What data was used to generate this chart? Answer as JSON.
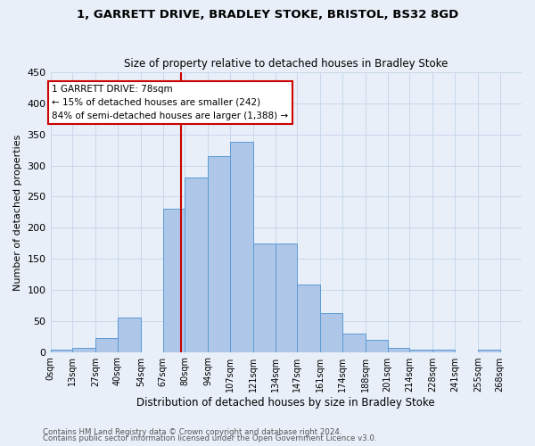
{
  "title_line1": "1, GARRETT DRIVE, BRADLEY STOKE, BRISTOL, BS32 8GD",
  "title_line2": "Size of property relative to detached houses in Bradley Stoke",
  "xlabel": "Distribution of detached houses by size in Bradley Stoke",
  "ylabel": "Number of detached properties",
  "bin_labels": [
    "0sqm",
    "13sqm",
    "27sqm",
    "40sqm",
    "54sqm",
    "67sqm",
    "80sqm",
    "94sqm",
    "107sqm",
    "121sqm",
    "134sqm",
    "147sqm",
    "161sqm",
    "174sqm",
    "188sqm",
    "201sqm",
    "214sqm",
    "228sqm",
    "241sqm",
    "255sqm",
    "268sqm"
  ],
  "bar_values": [
    3,
    6,
    22,
    55,
    0,
    230,
    280,
    315,
    338,
    175,
    175,
    108,
    63,
    30,
    19,
    6,
    3,
    3,
    0,
    3
  ],
  "bin_edges": [
    0,
    13,
    27,
    40,
    54,
    67,
    80,
    94,
    107,
    121,
    134,
    147,
    161,
    174,
    188,
    201,
    214,
    228,
    241,
    255,
    268
  ],
  "bar_color": "#aec6e8",
  "bar_edge_color": "#5b9bd5",
  "vline_x": 78,
  "vline_color": "#cc0000",
  "annotation_text": "1 GARRETT DRIVE: 78sqm\n← 15% of detached houses are smaller (242)\n84% of semi-detached houses are larger (1,388) →",
  "annotation_box_color": "#ffffff",
  "annotation_box_edge": "#cc0000",
  "ylim": [
    0,
    450
  ],
  "yticks": [
    0,
    50,
    100,
    150,
    200,
    250,
    300,
    350,
    400,
    450
  ],
  "grid_color": "#c8d8ea",
  "footer_line1": "Contains HM Land Registry data © Crown copyright and database right 2024.",
  "footer_line2": "Contains public sector information licensed under the Open Government Licence v3.0.",
  "bg_color": "#e8eff8"
}
